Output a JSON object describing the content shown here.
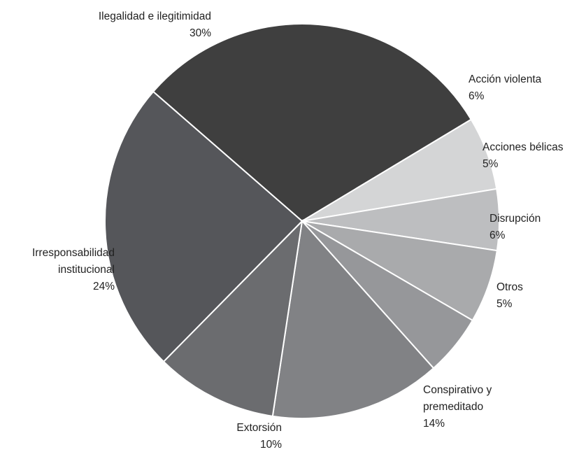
{
  "chart_data": {
    "type": "pie",
    "slices": [
      {
        "label": [
          "Ilegalidad e ilegitimidad"
        ],
        "value": 30,
        "value_label": "30%",
        "color": "#3f3f3f"
      },
      {
        "label": [
          "Acción violenta"
        ],
        "value": 6,
        "value_label": "6%",
        "color": "#d4d5d6"
      },
      {
        "label": [
          "Acciones bélicas"
        ],
        "value": 5,
        "value_label": "5%",
        "color": "#bdbec0"
      },
      {
        "label": [
          "Disrupción"
        ],
        "value": 6,
        "value_label": "6%",
        "color": "#a9aaac"
      },
      {
        "label": [
          "Otros"
        ],
        "value": 5,
        "value_label": "5%",
        "color": "#96979a"
      },
      {
        "label": [
          "Conspirativo y",
          "premeditado"
        ],
        "value": 14,
        "value_label": "14%",
        "color": "#818285"
      },
      {
        "label": [
          "Extorsión"
        ],
        "value": 10,
        "value_label": "10%",
        "color": "#6b6c6f"
      },
      {
        "label": [
          "Irresponsabilidad",
          "institucional"
        ],
        "value": 24,
        "value_label": "24%",
        "color": "#55565a"
      }
    ]
  }
}
